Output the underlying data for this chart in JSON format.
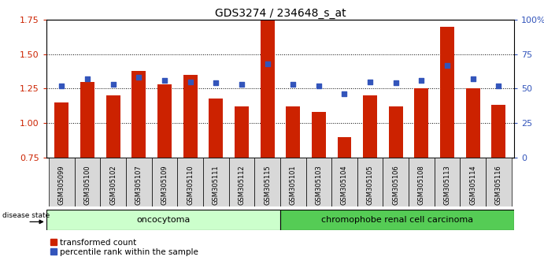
{
  "title": "GDS3274 / 234648_s_at",
  "samples": [
    "GSM305099",
    "GSM305100",
    "GSM305102",
    "GSM305107",
    "GSM305109",
    "GSM305110",
    "GSM305111",
    "GSM305112",
    "GSM305115",
    "GSM305101",
    "GSM305103",
    "GSM305104",
    "GSM305105",
    "GSM305106",
    "GSM305108",
    "GSM305113",
    "GSM305114",
    "GSM305116"
  ],
  "bar_values": [
    1.15,
    1.3,
    1.2,
    1.38,
    1.28,
    1.35,
    1.18,
    1.12,
    1.75,
    1.12,
    1.08,
    0.9,
    1.2,
    1.12,
    1.25,
    1.7,
    1.25,
    1.13
  ],
  "dot_values": [
    52,
    57,
    53,
    58,
    56,
    55,
    54,
    53,
    68,
    53,
    52,
    46,
    55,
    54,
    56,
    67,
    57,
    52
  ],
  "ylim_left": [
    0.75,
    1.75
  ],
  "ylim_right": [
    0,
    100
  ],
  "yticks_left": [
    0.75,
    1.0,
    1.25,
    1.5,
    1.75
  ],
  "yticks_right": [
    0,
    25,
    50,
    75,
    100
  ],
  "ytick_labels_right": [
    "0",
    "25",
    "50",
    "75",
    "100%"
  ],
  "group1_label": "oncocytoma",
  "group2_label": "chromophobe renal cell carcinoma",
  "group1_count": 9,
  "group2_count": 9,
  "bar_color": "#cc2200",
  "dot_color": "#3355bb",
  "group1_bg": "#ccffcc",
  "group2_bg": "#55cc55",
  "legend_bar": "transformed count",
  "legend_dot": "percentile rank within the sample",
  "bar_width": 0.55,
  "background_color": "#ffffff",
  "plot_bg": "#ffffff",
  "tick_bg": "#d8d8d8",
  "title_fontsize": 10
}
